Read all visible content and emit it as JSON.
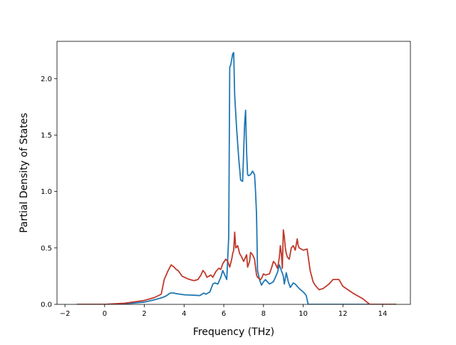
{
  "chart_data": {
    "type": "line",
    "title": "",
    "xlabel": "Frequency (THz)",
    "ylabel": "Partial Density of States",
    "xlim": [
      -2.4,
      15.4
    ],
    "ylim": [
      0.0,
      2.33
    ],
    "xticks": [
      -2,
      0,
      2,
      4,
      6,
      8,
      10,
      12,
      14
    ],
    "xtick_labels": [
      "−2",
      "0",
      "2",
      "4",
      "6",
      "8",
      "10",
      "12",
      "14"
    ],
    "yticks": [
      0.0,
      0.5,
      1.0,
      1.5,
      2.0
    ],
    "ytick_labels": [
      "0.0",
      "0.5",
      "1.0",
      "1.5",
      "2.0"
    ],
    "grid": false,
    "legend": "none",
    "series": [
      {
        "color": "#1f77b4",
        "x": [
          -1.4,
          0.0,
          1.0,
          2.0,
          2.5,
          2.9,
          3.1,
          3.3,
          3.5,
          3.6,
          3.8,
          4.0,
          4.3,
          4.6,
          4.8,
          4.9,
          5.0,
          5.1,
          5.3,
          5.45,
          5.55,
          5.7,
          5.85,
          5.95,
          6.05,
          6.15,
          6.25,
          6.3,
          6.35,
          6.45,
          6.5,
          6.55,
          6.65,
          6.75,
          6.85,
          6.95,
          7.05,
          7.1,
          7.15,
          7.2,
          7.25,
          7.35,
          7.45,
          7.55,
          7.6,
          7.65,
          7.7,
          7.8,
          7.9,
          8.0,
          8.1,
          8.3,
          8.5,
          8.7,
          8.8,
          8.9,
          9.0,
          9.05,
          9.15,
          9.25,
          9.35,
          9.5,
          9.6,
          9.7,
          9.8,
          10.0,
          10.15,
          10.25,
          10.35,
          10.5,
          11.0,
          12.0,
          13.0,
          14.0,
          14.7
        ],
        "y": [
          0.0,
          0.0,
          0.005,
          0.02,
          0.04,
          0.06,
          0.075,
          0.1,
          0.1,
          0.095,
          0.09,
          0.085,
          0.083,
          0.08,
          0.078,
          0.09,
          0.1,
          0.09,
          0.11,
          0.18,
          0.19,
          0.18,
          0.24,
          0.3,
          0.26,
          0.22,
          0.6,
          2.1,
          2.12,
          2.22,
          2.23,
          1.85,
          1.55,
          1.3,
          1.1,
          1.09,
          1.6,
          1.72,
          1.35,
          1.15,
          1.14,
          1.15,
          1.18,
          1.15,
          1.0,
          0.8,
          0.3,
          0.22,
          0.17,
          0.2,
          0.22,
          0.18,
          0.2,
          0.28,
          0.35,
          0.3,
          0.25,
          0.18,
          0.28,
          0.2,
          0.15,
          0.19,
          0.18,
          0.16,
          0.14,
          0.11,
          0.08,
          0.0,
          0.0,
          0.0,
          0.0,
          0.0,
          0.0,
          0.0,
          0.0
        ]
      },
      {
        "color": "#c0392b",
        "x": [
          -1.4,
          0.0,
          1.0,
          2.0,
          2.5,
          2.85,
          3.0,
          3.2,
          3.35,
          3.5,
          3.6,
          3.7,
          3.9,
          4.2,
          4.5,
          4.7,
          4.85,
          4.95,
          5.05,
          5.15,
          5.25,
          5.35,
          5.45,
          5.6,
          5.75,
          5.85,
          5.95,
          6.1,
          6.2,
          6.3,
          6.4,
          6.45,
          6.5,
          6.55,
          6.6,
          6.7,
          6.8,
          6.9,
          7.0,
          7.1,
          7.15,
          7.2,
          7.3,
          7.35,
          7.45,
          7.55,
          7.65,
          7.7,
          7.85,
          7.9,
          8.0,
          8.1,
          8.3,
          8.4,
          8.5,
          8.6,
          8.7,
          8.75,
          8.8,
          8.85,
          8.9,
          8.95,
          9.0,
          9.05,
          9.1,
          9.15,
          9.2,
          9.3,
          9.4,
          9.5,
          9.6,
          9.7,
          9.75,
          9.8,
          9.9,
          10.0,
          10.2,
          10.35,
          10.5,
          10.6,
          10.8,
          11.0,
          11.3,
          11.5,
          11.6,
          11.8,
          12.0,
          12.5,
          13.0,
          13.35,
          13.5,
          14.0,
          14.7
        ],
        "y": [
          0.0,
          0.0,
          0.01,
          0.035,
          0.06,
          0.09,
          0.22,
          0.3,
          0.35,
          0.33,
          0.31,
          0.3,
          0.25,
          0.225,
          0.21,
          0.22,
          0.26,
          0.3,
          0.28,
          0.24,
          0.25,
          0.26,
          0.24,
          0.29,
          0.32,
          0.31,
          0.36,
          0.4,
          0.38,
          0.33,
          0.4,
          0.45,
          0.48,
          0.64,
          0.5,
          0.52,
          0.45,
          0.42,
          0.38,
          0.42,
          0.44,
          0.33,
          0.38,
          0.46,
          0.44,
          0.4,
          0.26,
          0.24,
          0.22,
          0.23,
          0.27,
          0.26,
          0.27,
          0.32,
          0.38,
          0.36,
          0.32,
          0.36,
          0.42,
          0.52,
          0.45,
          0.32,
          0.66,
          0.6,
          0.5,
          0.45,
          0.42,
          0.4,
          0.5,
          0.52,
          0.48,
          0.58,
          0.52,
          0.5,
          0.49,
          0.48,
          0.49,
          0.3,
          0.2,
          0.17,
          0.13,
          0.14,
          0.18,
          0.22,
          0.22,
          0.22,
          0.16,
          0.1,
          0.05,
          0.0,
          0.0,
          0.0,
          0.0
        ]
      }
    ]
  }
}
